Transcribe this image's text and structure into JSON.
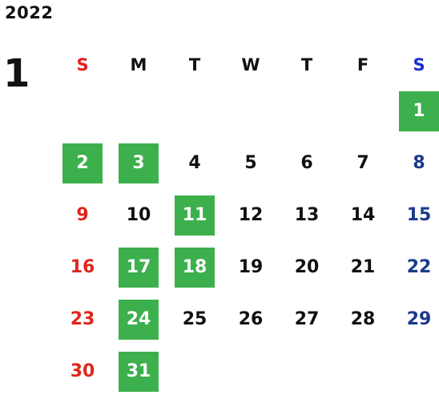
{
  "calendar": {
    "year": "2022",
    "month": "1",
    "weekdays": [
      "S",
      "M",
      "T",
      "W",
      "T",
      "F",
      "S"
    ],
    "highlight_color": "#3cb04c",
    "sunday_color": "#e0251c",
    "saturday_color": "#1a3a8a",
    "weeks": [
      [
        {
          "day": "",
          "hl": false
        },
        {
          "day": "",
          "hl": false
        },
        {
          "day": "",
          "hl": false
        },
        {
          "day": "",
          "hl": false
        },
        {
          "day": "",
          "hl": false
        },
        {
          "day": "",
          "hl": false
        },
        {
          "day": "1",
          "hl": true
        }
      ],
      [
        {
          "day": "2",
          "hl": true
        },
        {
          "day": "3",
          "hl": true
        },
        {
          "day": "4",
          "hl": false
        },
        {
          "day": "5",
          "hl": false
        },
        {
          "day": "6",
          "hl": false
        },
        {
          "day": "7",
          "hl": false
        },
        {
          "day": "8",
          "hl": false
        }
      ],
      [
        {
          "day": "9",
          "hl": false
        },
        {
          "day": "10",
          "hl": false
        },
        {
          "day": "11",
          "hl": true
        },
        {
          "day": "12",
          "hl": false
        },
        {
          "day": "13",
          "hl": false
        },
        {
          "day": "14",
          "hl": false
        },
        {
          "day": "15",
          "hl": false
        }
      ],
      [
        {
          "day": "16",
          "hl": false
        },
        {
          "day": "17",
          "hl": true
        },
        {
          "day": "18",
          "hl": true
        },
        {
          "day": "19",
          "hl": false
        },
        {
          "day": "20",
          "hl": false
        },
        {
          "day": "21",
          "hl": false
        },
        {
          "day": "22",
          "hl": false
        }
      ],
      [
        {
          "day": "23",
          "hl": false
        },
        {
          "day": "24",
          "hl": true
        },
        {
          "day": "25",
          "hl": false
        },
        {
          "day": "26",
          "hl": false
        },
        {
          "day": "27",
          "hl": false
        },
        {
          "day": "28",
          "hl": false
        },
        {
          "day": "29",
          "hl": false
        }
      ],
      [
        {
          "day": "30",
          "hl": false
        },
        {
          "day": "31",
          "hl": true
        },
        {
          "day": "",
          "hl": false
        },
        {
          "day": "",
          "hl": false
        },
        {
          "day": "",
          "hl": false
        },
        {
          "day": "",
          "hl": false
        },
        {
          "day": "",
          "hl": false
        }
      ]
    ]
  }
}
